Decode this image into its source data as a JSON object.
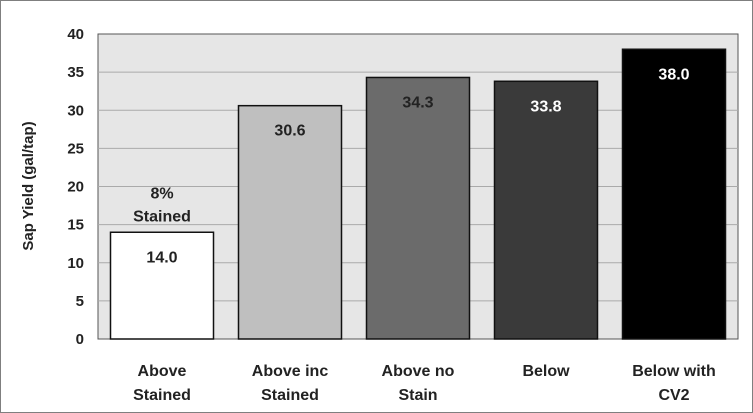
{
  "chart_data": {
    "type": "bar",
    "title": "",
    "xlabel": "",
    "ylabel": "Sap Yield (gal/tap)",
    "ylim": [
      0,
      40
    ],
    "yticks": [
      0,
      5,
      10,
      15,
      20,
      25,
      30,
      35,
      40
    ],
    "grid": true,
    "legend": "none",
    "categories": [
      [
        "Above",
        "Stained"
      ],
      [
        "Above inc",
        "Stained"
      ],
      [
        "Above no",
        "Stain"
      ],
      [
        "Below"
      ],
      [
        "Below with",
        "CV2"
      ]
    ],
    "values": [
      14.0,
      30.6,
      34.3,
      33.8,
      38.0
    ],
    "value_labels": [
      "14.0",
      "30.6",
      "34.3",
      "33.8",
      "38.0"
    ],
    "bar_colors": [
      "#ffffff",
      "#bfbfbf",
      "#6b6b6b",
      "#3a3a3a",
      "#000000"
    ],
    "label_colors": [
      "#222222",
      "#222222",
      "#222222",
      "#ffffff",
      "#ffffff"
    ],
    "annotations": [
      {
        "category_index": 0,
        "lines": [
          "8%",
          "Stained"
        ]
      }
    ],
    "plot_background": "#e6e6e6"
  }
}
